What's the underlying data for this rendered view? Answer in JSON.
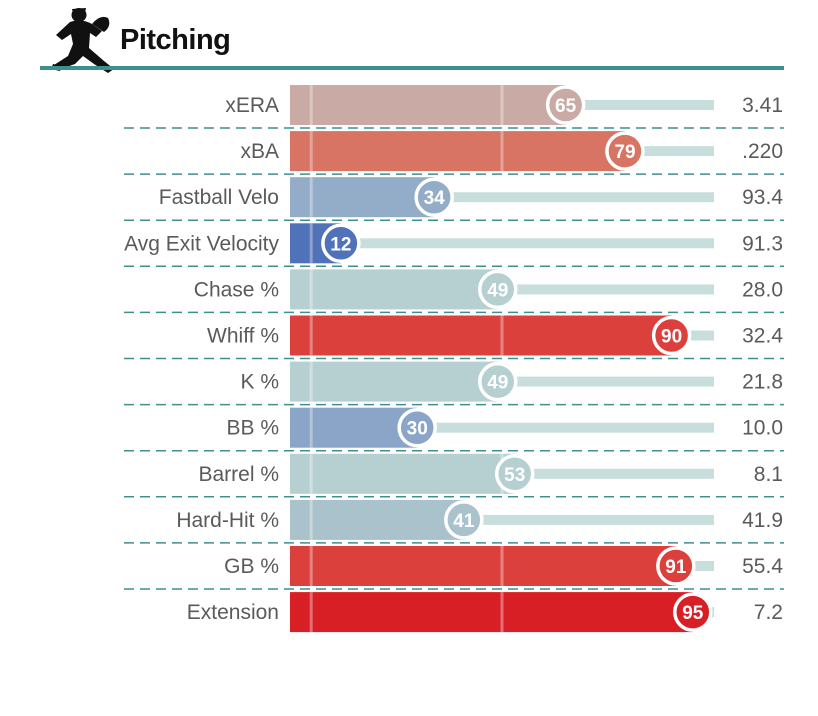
{
  "header": {
    "title": "Pitching",
    "rule_color": "#3f8f8f",
    "icon": "pitcher-silhouette-icon"
  },
  "chart_data": {
    "type": "bar",
    "orientation": "horizontal",
    "xlim": [
      0,
      100
    ],
    "grid": "vertical lines at 5 and 50",
    "categories": [
      "xERA",
      "xBA",
      "Fastball Velo",
      "Avg Exit Velocity",
      "Chase %",
      "Whiff %",
      "K %",
      "BB %",
      "Barrel %",
      "Hard-Hit %",
      "GB %",
      "Extension"
    ],
    "percentiles": [
      65,
      79,
      34,
      12,
      49,
      90,
      49,
      30,
      53,
      41,
      91,
      95
    ],
    "values": [
      "3.41",
      ".220",
      "93.4",
      "91.3",
      "28.0",
      "32.4",
      "21.8",
      "10.0",
      "8.1",
      "41.9",
      "55.4",
      "7.2"
    ],
    "colors": [
      "#c9aaa4",
      "#d87464",
      "#93acc8",
      "#4f72b8",
      "#b6d0d2",
      "#db403d",
      "#b6d0d2",
      "#8aa5c7",
      "#b6d0d2",
      "#a9c2cb",
      "#db403d",
      "#d81f26"
    ],
    "track_color": "#c7dedd",
    "separator_color": "#3f8f8f"
  }
}
